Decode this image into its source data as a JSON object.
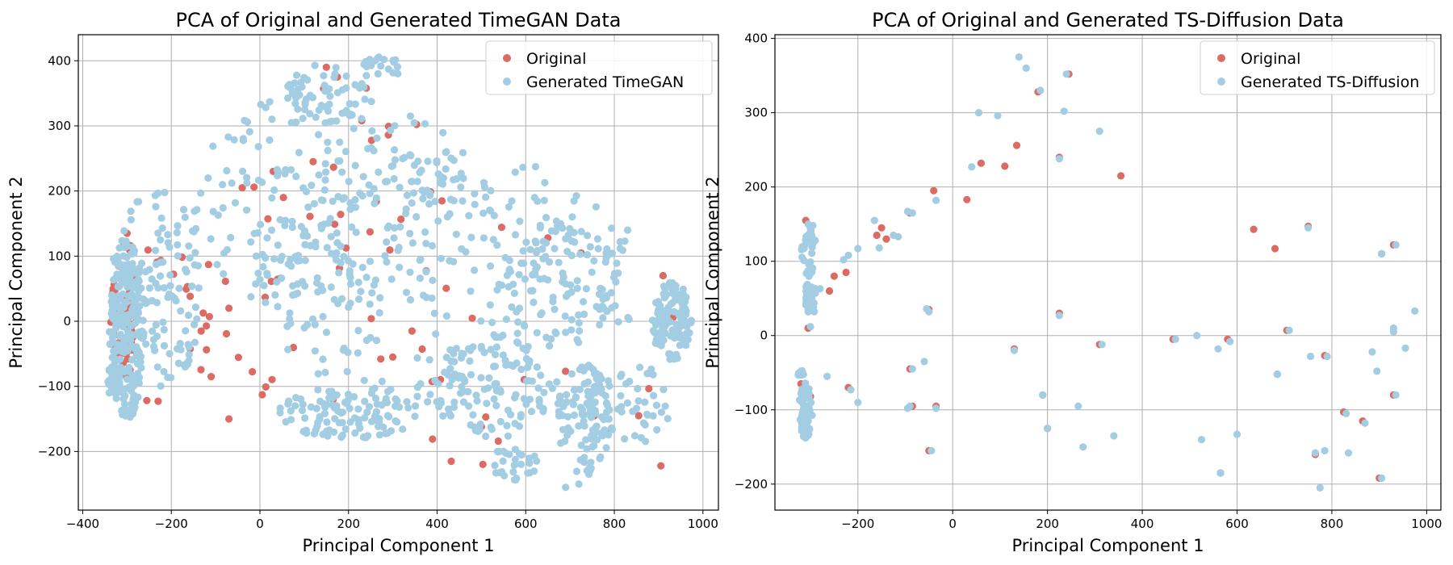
{
  "chart_data": [
    {
      "type": "scatter",
      "title": "PCA of Original and Generated TimeGAN Data",
      "xlabel": "Principal Component 1",
      "ylabel": "Principal Component 2",
      "xlim": [
        -410,
        1035
      ],
      "ylim": [
        -290,
        440
      ],
      "xticks": [
        -400,
        -200,
        0,
        200,
        400,
        600,
        800,
        1000
      ],
      "xtick_labels": [
        "−400",
        "−200",
        "0",
        "200",
        "400",
        "600",
        "800",
        "1000"
      ],
      "yticks": [
        -200,
        -100,
        0,
        100,
        200,
        300,
        400
      ],
      "ytick_labels": [
        "−200",
        "−100",
        "0",
        "100",
        "200",
        "300",
        "400"
      ],
      "grid": true,
      "legend": "top-right",
      "series": [
        {
          "name": "Original",
          "color": "#dc6b64",
          "clusters": [
            {
              "cx": -305,
              "cy": 20,
              "rx": 30,
              "ry": 110,
              "n": 60
            },
            {
              "cx": -200,
              "cy": 10,
              "rx": 140,
              "ry": 150,
              "n": 25
            },
            {
              "cx": 200,
              "cy": 230,
              "rx": 240,
              "ry": 150,
              "n": 20
            },
            {
              "cx": 450,
              "cy": -40,
              "rx": 500,
              "ry": 200,
              "n": 30
            }
          ],
          "points": [
            [
              -300,
              135
            ],
            [
              150,
              390
            ],
            [
              175,
              375
            ],
            [
              240,
              358
            ],
            [
              230,
              308
            ],
            [
              120,
              245
            ],
            [
              -70,
              -150
            ],
            [
              -70,
              20
            ],
            [
              -110,
              -85
            ],
            [
              650,
              128
            ],
            [
              725,
              105
            ],
            [
              910,
              70
            ],
            [
              500,
              -162
            ],
            [
              755,
              -145
            ],
            [
              905,
              -222
            ],
            [
              855,
              -145
            ],
            [
              780,
              -170
            ],
            [
              300,
              -55
            ],
            [
              -40,
              205
            ],
            [
              30,
              230
            ]
          ]
        },
        {
          "name": "Generated TimeGAN",
          "color": "#a3cde2",
          "clusters": [
            {
              "cx": -300,
              "cy": -10,
              "rx": 40,
              "ry": 140,
              "n": 220
            },
            {
              "cx": -230,
              "cy": 50,
              "rx": 110,
              "ry": 150,
              "n": 120
            },
            {
              "cx": -330,
              "cy": -90,
              "rx": 14,
              "ry": 24,
              "n": 40
            },
            {
              "cx": 150,
              "cy": 350,
              "rx": 90,
              "ry": 45,
              "n": 50
            },
            {
              "cx": 270,
              "cy": 390,
              "rx": 50,
              "ry": 20,
              "n": 18
            },
            {
              "cx": 170,
              "cy": 180,
              "rx": 320,
              "ry": 180,
              "n": 220
            },
            {
              "cx": 420,
              "cy": 60,
              "rx": 440,
              "ry": 200,
              "n": 230
            },
            {
              "cx": 200,
              "cy": -140,
              "rx": 160,
              "ry": 40,
              "n": 110
            },
            {
              "cx": 520,
              "cy": -100,
              "rx": 140,
              "ry": 80,
              "n": 110
            },
            {
              "cx": 730,
              "cy": -150,
              "rx": 60,
              "ry": 90,
              "n": 90
            },
            {
              "cx": 680,
              "cy": 60,
              "rx": 140,
              "ry": 90,
              "n": 100
            },
            {
              "cx": 930,
              "cy": 0,
              "rx": 45,
              "ry": 60,
              "n": 110
            },
            {
              "cx": 830,
              "cy": -130,
              "rx": 100,
              "ry": 70,
              "n": 60
            },
            {
              "cx": 570,
              "cy": -220,
              "rx": 60,
              "ry": 25,
              "n": 30
            }
          ],
          "points": [
            [
              260,
              400
            ],
            [
              280,
              402
            ],
            [
              -340,
              -110
            ],
            [
              960,
              30
            ],
            [
              690,
              -255
            ],
            [
              720,
              -250
            ],
            [
              620,
              190
            ],
            [
              830,
              140
            ]
          ]
        }
      ]
    },
    {
      "type": "scatter",
      "title": "PCA of Original and Generated TS-Diffusion Data",
      "xlabel": "Principal Component 1",
      "ylabel": "Principal Component 2",
      "xlim": [
        -375,
        1030
      ],
      "ylim": [
        -235,
        405
      ],
      "xticks": [
        -200,
        0,
        200,
        400,
        600,
        800,
        1000
      ],
      "xtick_labels": [
        "−200",
        "0",
        "200",
        "400",
        "600",
        "800",
        "1000"
      ],
      "yticks": [
        -200,
        -100,
        0,
        100,
        200,
        300,
        400
      ],
      "ytick_labels": [
        "−200",
        "−100",
        "0",
        "100",
        "200",
        "300",
        "400"
      ],
      "grid": true,
      "legend": "top-right",
      "series": [
        {
          "name": "Original",
          "color": "#dc6b64",
          "points": [
            [
              -310,
              155
            ],
            [
              -300,
              85
            ],
            [
              -305,
              62
            ],
            [
              -300,
              35
            ],
            [
              -305,
              10
            ],
            [
              -320,
              -65
            ],
            [
              -310,
              -130
            ],
            [
              -300,
              -82
            ],
            [
              -260,
              60
            ],
            [
              -250,
              80
            ],
            [
              -225,
              85
            ],
            [
              -220,
              -70
            ],
            [
              -160,
              135
            ],
            [
              -150,
              145
            ],
            [
              -140,
              130
            ],
            [
              -90,
              165
            ],
            [
              -90,
              -45
            ],
            [
              -85,
              -95
            ],
            [
              -50,
              35
            ],
            [
              -50,
              -155
            ],
            [
              -40,
              195
            ],
            [
              -35,
              -95
            ],
            [
              30,
              183
            ],
            [
              60,
              232
            ],
            [
              110,
              228
            ],
            [
              135,
              256
            ],
            [
              130,
              -18
            ],
            [
              180,
              328
            ],
            [
              190,
              -80
            ],
            [
              200,
              -125
            ],
            [
              225,
              240
            ],
            [
              225,
              30
            ],
            [
              245,
              352
            ],
            [
              310,
              -12
            ],
            [
              355,
              215
            ],
            [
              465,
              -5
            ],
            [
              565,
              -185
            ],
            [
              580,
              -5
            ],
            [
              635,
              143
            ],
            [
              680,
              117
            ],
            [
              685,
              -52
            ],
            [
              705,
              7
            ],
            [
              750,
              147
            ],
            [
              765,
              -160
            ],
            [
              785,
              -27
            ],
            [
              825,
              -103
            ],
            [
              865,
              -115
            ],
            [
              905,
              110
            ],
            [
              930,
              122
            ],
            [
              930,
              -80
            ],
            [
              900,
              -192
            ]
          ]
        },
        {
          "name": "Generated TS-Diffusion",
          "color": "#a3cde2",
          "clusters": [
            {
              "cx": -305,
              "cy": 110,
              "rx": 14,
              "ry": 40,
              "n": 28
            },
            {
              "cx": -300,
              "cy": 50,
              "rx": 14,
              "ry": 22,
              "n": 40
            },
            {
              "cx": -310,
              "cy": -100,
              "rx": 14,
              "ry": 38,
              "n": 55
            },
            {
              "cx": -320,
              "cy": -55,
              "rx": 6,
              "ry": 10,
              "n": 8
            }
          ],
          "points": [
            [
              -305,
              150
            ],
            [
              -295,
              148
            ],
            [
              -290,
              128
            ],
            [
              -280,
              63
            ],
            [
              -300,
              12
            ],
            [
              -230,
              102
            ],
            [
              -220,
              108
            ],
            [
              -200,
              117
            ],
            [
              -165,
              155
            ],
            [
              -155,
              118
            ],
            [
              -125,
              135
            ],
            [
              -115,
              133
            ],
            [
              -95,
              167
            ],
            [
              -85,
              165
            ],
            [
              -95,
              -98
            ],
            [
              -90,
              -95
            ],
            [
              -85,
              -45
            ],
            [
              -60,
              -35
            ],
            [
              -55,
              36
            ],
            [
              -50,
              32
            ],
            [
              -45,
              -155
            ],
            [
              -35,
              182
            ],
            [
              -35,
              -98
            ],
            [
              -215,
              -73
            ],
            [
              -200,
              -90
            ],
            [
              -265,
              -55
            ],
            [
              40,
              227
            ],
            [
              55,
              300
            ],
            [
              95,
              296
            ],
            [
              140,
              375
            ],
            [
              155,
              360
            ],
            [
              185,
              330
            ],
            [
              130,
              -20
            ],
            [
              190,
              -80
            ],
            [
              200,
              -125
            ],
            [
              225,
              238
            ],
            [
              225,
              27
            ],
            [
              235,
              302
            ],
            [
              240,
              352
            ],
            [
              265,
              -95
            ],
            [
              275,
              -150
            ],
            [
              310,
              275
            ],
            [
              315,
              -12
            ],
            [
              340,
              -135
            ],
            [
              470,
              -5
            ],
            [
              515,
              0
            ],
            [
              525,
              -140
            ],
            [
              560,
              -18
            ],
            [
              565,
              -185
            ],
            [
              585,
              -8
            ],
            [
              600,
              -133
            ],
            [
              685,
              -52
            ],
            [
              710,
              7
            ],
            [
              750,
              145
            ],
            [
              755,
              -28
            ],
            [
              765,
              -158
            ],
            [
              775,
              -205
            ],
            [
              785,
              -155
            ],
            [
              790,
              -28
            ],
            [
              830,
              -105
            ],
            [
              835,
              -158
            ],
            [
              870,
              -118
            ],
            [
              885,
              -22
            ],
            [
              895,
              -48
            ],
            [
              905,
              110
            ],
            [
              905,
              -192
            ],
            [
              930,
              10
            ],
            [
              930,
              5
            ],
            [
              935,
              122
            ],
            [
              935,
              -80
            ],
            [
              955,
              -17
            ],
            [
              975,
              33
            ]
          ]
        }
      ]
    }
  ]
}
